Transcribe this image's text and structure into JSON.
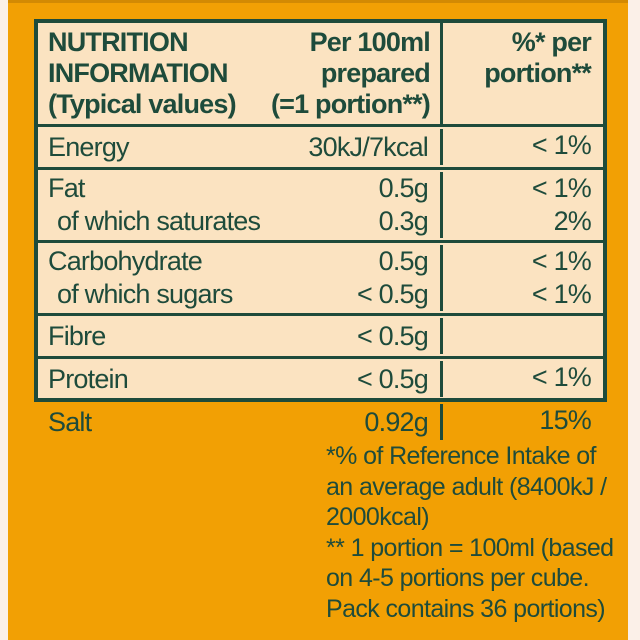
{
  "colors": {
    "label_orange": "#F2A004",
    "panel_cream": "#FBE3C1",
    "ink_green": "#1E4B3B",
    "page_edge": "#FBF0E8"
  },
  "table": {
    "header": {
      "title_line1": "NUTRITION",
      "title_line2": "INFORMATION",
      "title_line3": "(Typical values)",
      "per_line1": "Per 100ml",
      "per_line2": "prepared",
      "per_line3": "(=1 portion**)",
      "pct_line1": "%* per",
      "pct_line2": "portion**"
    },
    "groups": [
      {
        "lines": [
          {
            "name": "Energy",
            "value": "30kJ/7kcal",
            "percent": "< 1%"
          }
        ]
      },
      {
        "lines": [
          {
            "name": "Fat",
            "value": "0.5g",
            "percent": "< 1%"
          },
          {
            "name": "of which saturates",
            "value": "0.3g",
            "percent": "2%"
          }
        ]
      },
      {
        "lines": [
          {
            "name": "Carbohydrate",
            "value": "0.5g",
            "percent": "< 1%"
          },
          {
            "name": "of which sugars",
            "value": "< 0.5g",
            "percent": "< 1%"
          }
        ]
      },
      {
        "lines": [
          {
            "name": "Fibre",
            "value": "< 0.5g",
            "percent": ""
          }
        ]
      },
      {
        "lines": [
          {
            "name": "Protein",
            "value": "< 0.5g",
            "percent": "< 1%"
          }
        ]
      },
      {
        "lines": [
          {
            "name": "Salt",
            "value": "0.92g",
            "percent": "15%"
          }
        ]
      }
    ]
  },
  "footnotes": {
    "line1": "*% of Reference Intake of",
    "line2": "an average adult (8400kJ /",
    "line3": "2000kcal)",
    "line4": "** 1 portion = 100ml (based",
    "line5": "on 4-5 portions per cube.",
    "line6": "Pack contains 36 portions)"
  }
}
